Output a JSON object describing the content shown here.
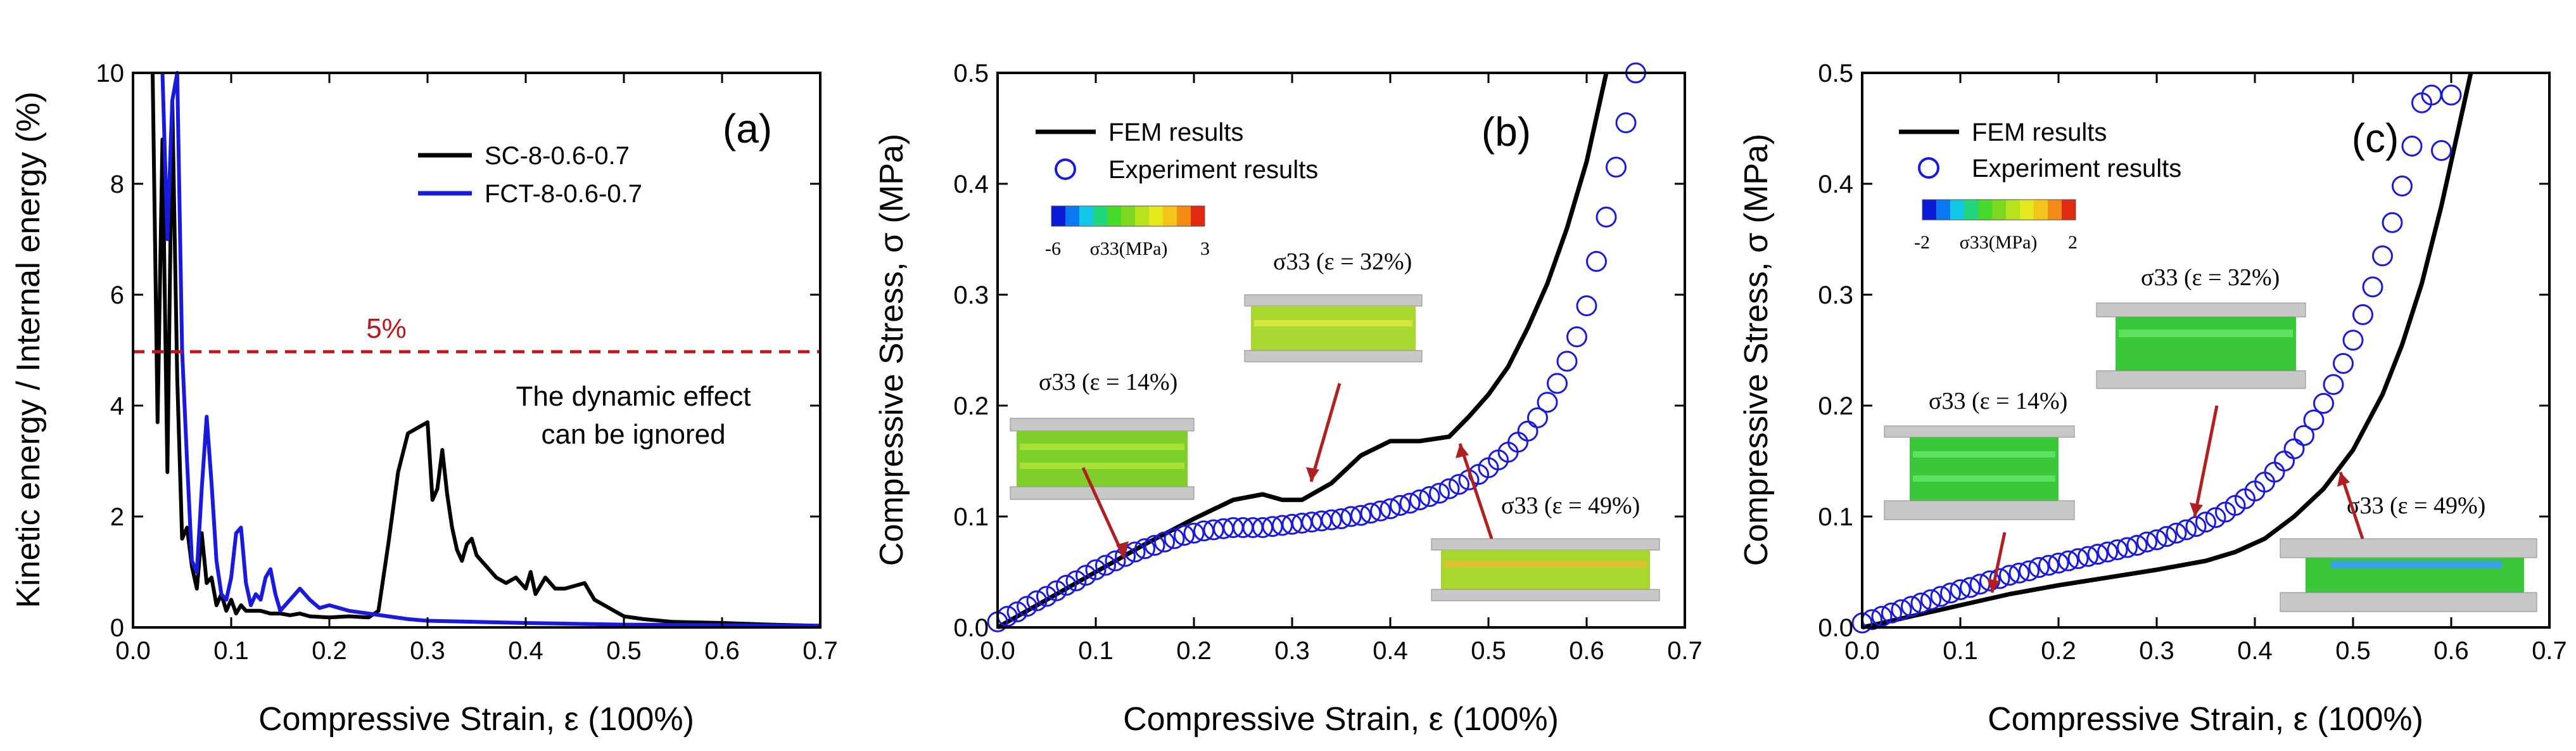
{
  "colors": {
    "black": "#000000",
    "blue": "#1a1adc",
    "red": "#c0161b"
  },
  "chart_data": [
    {
      "panel": "(a)",
      "type": "line",
      "xlabel": "Compressive Strain, ε (100%)",
      "ylabel": "Kinetic energy / Internal energy (%)",
      "xlim": [
        0,
        0.7
      ],
      "ylim": [
        0,
        10
      ],
      "xticks": [
        "0.0",
        "0.1",
        "0.2",
        "0.3",
        "0.4",
        "0.5",
        "0.6",
        "0.7"
      ],
      "yticks": [
        "0",
        "2",
        "4",
        "6",
        "8",
        "10"
      ],
      "threshold": {
        "value": 5,
        "label": "5%"
      },
      "annotation_lines": [
        "The dynamic effect",
        "can be ignored"
      ],
      "series": [
        {
          "name": "SC-8-0.6-0.7",
          "color": "#000000",
          "x": [
            0.02,
            0.025,
            0.03,
            0.035,
            0.04,
            0.045,
            0.05,
            0.055,
            0.06,
            0.065,
            0.07,
            0.075,
            0.08,
            0.085,
            0.09,
            0.095,
            0.1,
            0.105,
            0.11,
            0.115,
            0.12,
            0.13,
            0.14,
            0.15,
            0.16,
            0.17,
            0.18,
            0.2,
            0.22,
            0.24,
            0.25,
            0.26,
            0.27,
            0.28,
            0.29,
            0.3,
            0.305,
            0.31,
            0.315,
            0.32,
            0.325,
            0.33,
            0.335,
            0.34,
            0.345,
            0.35,
            0.36,
            0.37,
            0.38,
            0.39,
            0.4,
            0.405,
            0.41,
            0.42,
            0.43,
            0.44,
            0.45,
            0.46,
            0.47,
            0.48,
            0.5,
            0.52,
            0.55,
            0.6,
            0.65,
            0.7
          ],
          "y": [
            10,
            3.7,
            8.8,
            2.8,
            9.5,
            4.5,
            1.6,
            1.8,
            1.1,
            0.7,
            1.7,
            0.8,
            0.9,
            0.4,
            0.6,
            0.3,
            0.5,
            0.25,
            0.4,
            0.3,
            0.3,
            0.3,
            0.25,
            0.25,
            0.22,
            0.25,
            0.2,
            0.18,
            0.2,
            0.18,
            0.3,
            1.5,
            2.8,
            3.5,
            3.6,
            3.7,
            2.3,
            2.5,
            3.2,
            2.4,
            1.8,
            1.4,
            1.2,
            1.5,
            1.6,
            1.3,
            1.1,
            0.9,
            0.8,
            0.9,
            0.7,
            1.0,
            0.6,
            0.9,
            0.7,
            0.7,
            0.75,
            0.8,
            0.5,
            0.4,
            0.2,
            0.15,
            0.1,
            0.08,
            0.05,
            0.03
          ]
        },
        {
          "name": "FCT-8-0.6-0.7",
          "color": "#1a1adc",
          "x": [
            0.03,
            0.035,
            0.04,
            0.045,
            0.05,
            0.055,
            0.06,
            0.065,
            0.07,
            0.075,
            0.08,
            0.085,
            0.09,
            0.095,
            0.1,
            0.105,
            0.11,
            0.115,
            0.12,
            0.125,
            0.13,
            0.135,
            0.14,
            0.145,
            0.15,
            0.16,
            0.17,
            0.18,
            0.19,
            0.2,
            0.22,
            0.24,
            0.26,
            0.28,
            0.3,
            0.35,
            0.4,
            0.5,
            0.6,
            0.7
          ],
          "y": [
            10,
            7,
            9.5,
            10,
            5,
            3,
            1.2,
            1.0,
            2.5,
            3.8,
            2.6,
            1.2,
            0.6,
            0.5,
            0.9,
            1.7,
            1.8,
            0.8,
            0.4,
            0.6,
            0.5,
            0.9,
            1.05,
            0.6,
            0.3,
            0.5,
            0.7,
            0.5,
            0.35,
            0.4,
            0.3,
            0.25,
            0.2,
            0.15,
            0.12,
            0.1,
            0.08,
            0.05,
            0.04,
            0.03
          ]
        }
      ]
    },
    {
      "panel": "(b)",
      "type": "line",
      "xlabel": "Compressive Strain, ε (100%)",
      "ylabel": "Compressive Stress, σ (MPa)",
      "xlim": [
        0,
        0.7
      ],
      "ylim": [
        0,
        0.5
      ],
      "xticks": [
        "0.0",
        "0.1",
        "0.2",
        "0.3",
        "0.4",
        "0.5",
        "0.6",
        "0.7"
      ],
      "yticks": [
        "0.0",
        "0.1",
        "0.2",
        "0.3",
        "0.4",
        "0.5"
      ],
      "colorbar": {
        "min": "-6",
        "max": "3",
        "label": "σ33(MPa)"
      },
      "insets": [
        "σ33 (ε = 14%)",
        "σ33 (ε = 32%)",
        "σ33 (ε = 49%)"
      ],
      "series": [
        {
          "name": "FEM results",
          "style": "line",
          "color": "#000000",
          "x": [
            0,
            0.05,
            0.1,
            0.15,
            0.2,
            0.24,
            0.27,
            0.29,
            0.31,
            0.34,
            0.37,
            0.4,
            0.43,
            0.46,
            0.48,
            0.5,
            0.52,
            0.54,
            0.56,
            0.58,
            0.6,
            0.61,
            0.62
          ],
          "y": [
            0,
            0.025,
            0.05,
            0.075,
            0.098,
            0.115,
            0.12,
            0.115,
            0.115,
            0.13,
            0.155,
            0.168,
            0.168,
            0.172,
            0.19,
            0.21,
            0.235,
            0.27,
            0.31,
            0.36,
            0.42,
            0.46,
            0.5
          ]
        },
        {
          "name": "Experiment results",
          "style": "markers",
          "color": "#1a1adc",
          "x": [
            0,
            0.01,
            0.02,
            0.03,
            0.04,
            0.05,
            0.06,
            0.07,
            0.08,
            0.09,
            0.1,
            0.11,
            0.12,
            0.13,
            0.14,
            0.15,
            0.16,
            0.17,
            0.18,
            0.19,
            0.2,
            0.21,
            0.22,
            0.23,
            0.24,
            0.25,
            0.26,
            0.27,
            0.28,
            0.29,
            0.3,
            0.31,
            0.32,
            0.33,
            0.34,
            0.35,
            0.36,
            0.37,
            0.38,
            0.39,
            0.4,
            0.41,
            0.42,
            0.43,
            0.44,
            0.45,
            0.46,
            0.47,
            0.48,
            0.49,
            0.5,
            0.51,
            0.52,
            0.53,
            0.54,
            0.55,
            0.56,
            0.57,
            0.58,
            0.59,
            0.6,
            0.61,
            0.62,
            0.63,
            0.64,
            0.65
          ],
          "y": [
            0.005,
            0.01,
            0.014,
            0.019,
            0.024,
            0.028,
            0.033,
            0.038,
            0.042,
            0.047,
            0.052,
            0.056,
            0.06,
            0.064,
            0.068,
            0.071,
            0.074,
            0.077,
            0.08,
            0.083,
            0.085,
            0.087,
            0.088,
            0.089,
            0.09,
            0.09,
            0.09,
            0.09,
            0.091,
            0.092,
            0.093,
            0.094,
            0.095,
            0.096,
            0.097,
            0.098,
            0.1,
            0.101,
            0.103,
            0.105,
            0.107,
            0.11,
            0.112,
            0.115,
            0.118,
            0.121,
            0.125,
            0.129,
            0.133,
            0.138,
            0.144,
            0.151,
            0.158,
            0.167,
            0.177,
            0.189,
            0.203,
            0.22,
            0.24,
            0.262,
            0.29,
            0.33,
            0.37,
            0.415,
            0.455,
            0.5
          ]
        }
      ]
    },
    {
      "panel": "(c)",
      "type": "line",
      "xlabel": "Compressive Strain, ε (100%)",
      "ylabel": "Compressive Stress, σ (MPa)",
      "xlim": [
        0,
        0.7
      ],
      "ylim": [
        0,
        0.5
      ],
      "xticks": [
        "0.0",
        "0.1",
        "0.2",
        "0.3",
        "0.4",
        "0.5",
        "0.6",
        "0.7"
      ],
      "yticks": [
        "0.0",
        "0.1",
        "0.2",
        "0.3",
        "0.4",
        "0.5"
      ],
      "colorbar": {
        "min": "-2",
        "max": "2",
        "label": "σ33(MPa)"
      },
      "insets": [
        "σ33 (ε = 14%)",
        "σ33 (ε = 32%)",
        "σ33 (ε = 49%)"
      ],
      "series": [
        {
          "name": "FEM results",
          "style": "line",
          "color": "#000000",
          "x": [
            0,
            0.05,
            0.1,
            0.15,
            0.2,
            0.25,
            0.3,
            0.35,
            0.38,
            0.41,
            0.44,
            0.47,
            0.5,
            0.53,
            0.55,
            0.57,
            0.59,
            0.6,
            0.61,
            0.62
          ],
          "y": [
            0,
            0.01,
            0.02,
            0.03,
            0.038,
            0.045,
            0.052,
            0.06,
            0.068,
            0.08,
            0.1,
            0.125,
            0.16,
            0.21,
            0.255,
            0.31,
            0.38,
            0.42,
            0.46,
            0.5
          ]
        },
        {
          "name": "Experiment results",
          "style": "markers",
          "color": "#1a1adc",
          "x": [
            0,
            0.01,
            0.02,
            0.03,
            0.04,
            0.05,
            0.06,
            0.07,
            0.08,
            0.09,
            0.1,
            0.11,
            0.12,
            0.13,
            0.14,
            0.15,
            0.16,
            0.17,
            0.18,
            0.19,
            0.2,
            0.21,
            0.22,
            0.23,
            0.24,
            0.25,
            0.26,
            0.27,
            0.28,
            0.29,
            0.3,
            0.31,
            0.32,
            0.33,
            0.34,
            0.35,
            0.36,
            0.37,
            0.38,
            0.39,
            0.4,
            0.41,
            0.42,
            0.43,
            0.44,
            0.45,
            0.46,
            0.47,
            0.48,
            0.49,
            0.5,
            0.51,
            0.52,
            0.53,
            0.54,
            0.55,
            0.56,
            0.57,
            0.58,
            0.59,
            0.6
          ],
          "y": [
            0.004,
            0.007,
            0.01,
            0.013,
            0.016,
            0.019,
            0.022,
            0.025,
            0.028,
            0.031,
            0.034,
            0.036,
            0.039,
            0.042,
            0.044,
            0.047,
            0.049,
            0.051,
            0.054,
            0.056,
            0.058,
            0.06,
            0.062,
            0.064,
            0.066,
            0.068,
            0.07,
            0.072,
            0.074,
            0.077,
            0.079,
            0.082,
            0.085,
            0.088,
            0.091,
            0.095,
            0.099,
            0.104,
            0.11,
            0.116,
            0.123,
            0.131,
            0.14,
            0.15,
            0.161,
            0.173,
            0.187,
            0.202,
            0.219,
            0.238,
            0.259,
            0.282,
            0.307,
            0.335,
            0.365,
            0.398,
            0.434,
            0.473,
            0.48,
            0.43,
            0.48
          ]
        }
      ]
    }
  ]
}
